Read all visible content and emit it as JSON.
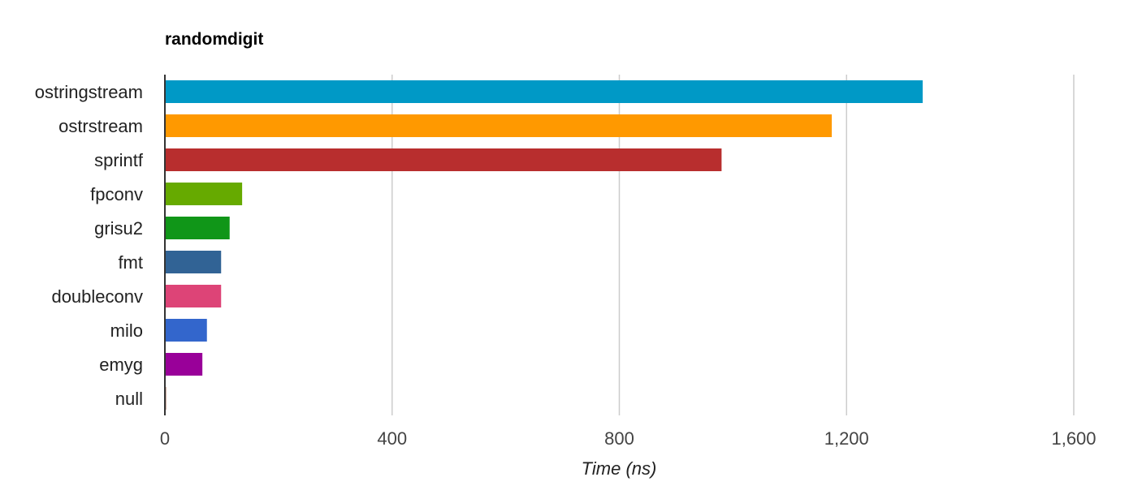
{
  "chart_data": {
    "type": "bar",
    "orientation": "horizontal",
    "title": "randomdigit",
    "xlabel": "Time (ns)",
    "ylabel": "",
    "xlim": [
      0,
      1600
    ],
    "ticks": [
      0,
      400,
      800,
      1200,
      1600
    ],
    "tick_labels": [
      "0",
      "400",
      "800",
      "1,200",
      "1,600"
    ],
    "grid": true,
    "categories": [
      "ostringstream",
      "ostrstream",
      "sprintf",
      "fpconv",
      "grisu2",
      "fmt",
      "doubleconv",
      "milo",
      "emyg",
      "null"
    ],
    "values": [
      1334,
      1174,
      980,
      136,
      114,
      99,
      99,
      74,
      66,
      2
    ],
    "colors": [
      "#0099c6",
      "#ff9900",
      "#b82e2e",
      "#66aa00",
      "#109618",
      "#316395",
      "#dd4477",
      "#3366cc",
      "#990099",
      "#8b3a1a"
    ]
  }
}
